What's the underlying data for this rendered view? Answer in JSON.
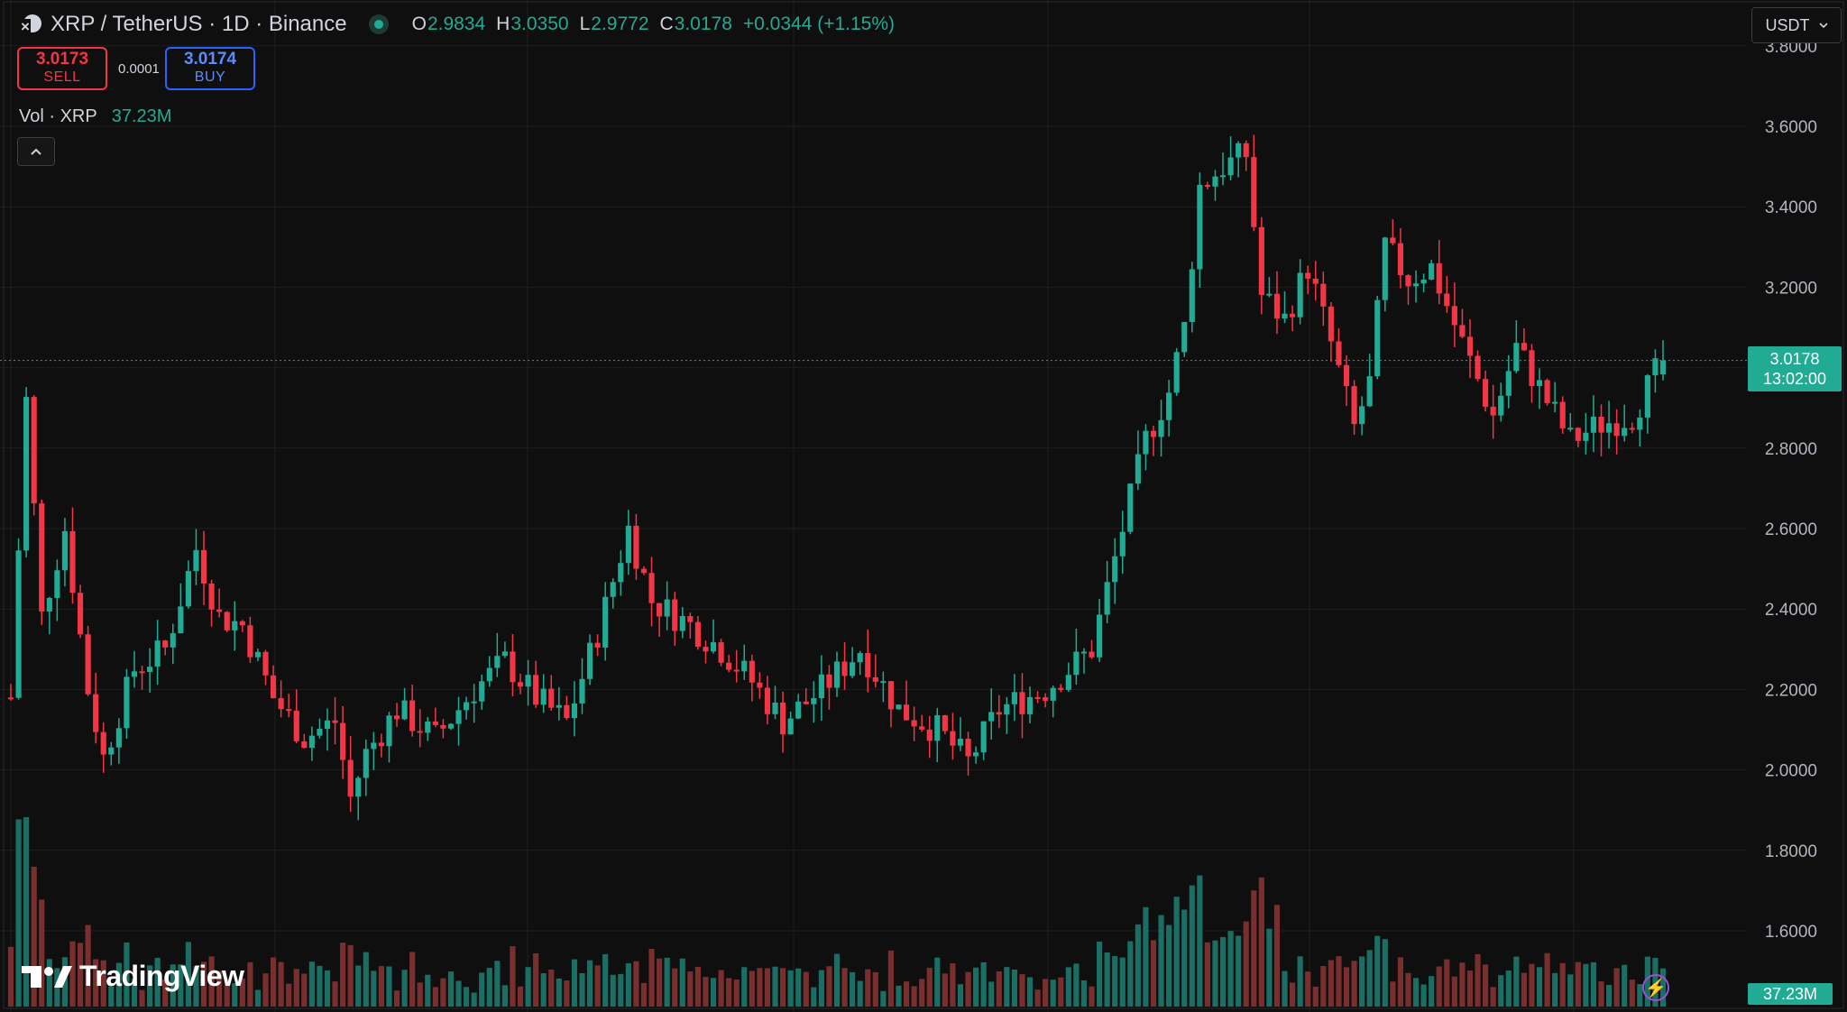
{
  "header": {
    "symbol_title": "XRP / TetherUS · 1D · Binance",
    "ohlc": [
      {
        "key": "O",
        "value": "2.9834"
      },
      {
        "key": "H",
        "value": "3.0350"
      },
      {
        "key": "L",
        "value": "2.9772"
      },
      {
        "key": "C",
        "value": "3.0178"
      }
    ],
    "change": "+0.0344 (+1.15%)",
    "currency": "USDT"
  },
  "trade": {
    "sell_price": "3.0173",
    "sell_label": "SELL",
    "spread": "0.0001",
    "buy_price": "3.0174",
    "buy_label": "BUY"
  },
  "volume_legend": {
    "label": "Vol · XRP",
    "value": "37.23M"
  },
  "price_tag": {
    "price": "3.0178",
    "countdown": "13:02:00"
  },
  "volume_tag": "37.23M",
  "branding": "TradingView",
  "colors": {
    "up": "#22ab94",
    "down": "#f23645",
    "up_volume": "#1a6e63",
    "down_volume": "#7a2f2f",
    "background": "#0f0f0f",
    "grid": "#1f1f1f"
  },
  "chart_data": {
    "type": "candlestick",
    "interval": "1D",
    "y_axis": {
      "ticks": [
        "1.6000",
        "1.8000",
        "2.0000",
        "2.2000",
        "2.4000",
        "2.6000",
        "2.8000",
        "3.0000",
        "3.2000",
        "3.4000",
        "3.6000",
        "3.8000"
      ],
      "range": [
        1.5,
        3.85
      ],
      "position": "right"
    },
    "grid": true,
    "last_price": 3.0178,
    "anchors": [
      {
        "t": 0,
        "p": 2.18
      },
      {
        "t": 2,
        "p": 2.92
      },
      {
        "t": 4,
        "p": 2.38
      },
      {
        "t": 7,
        "p": 2.6
      },
      {
        "t": 10,
        "p": 2.2
      },
      {
        "t": 12,
        "p": 2.03
      },
      {
        "t": 16,
        "p": 2.25
      },
      {
        "t": 20,
        "p": 2.3
      },
      {
        "t": 24,
        "p": 2.55
      },
      {
        "t": 27,
        "p": 2.38
      },
      {
        "t": 30,
        "p": 2.36
      },
      {
        "t": 34,
        "p": 2.18
      },
      {
        "t": 38,
        "p": 2.08
      },
      {
        "t": 42,
        "p": 2.12
      },
      {
        "t": 44,
        "p": 1.93
      },
      {
        "t": 46,
        "p": 2.04
      },
      {
        "t": 50,
        "p": 2.15
      },
      {
        "t": 55,
        "p": 2.08
      },
      {
        "t": 60,
        "p": 2.2
      },
      {
        "t": 64,
        "p": 2.27
      },
      {
        "t": 68,
        "p": 2.18
      },
      {
        "t": 72,
        "p": 2.12
      },
      {
        "t": 76,
        "p": 2.34
      },
      {
        "t": 80,
        "p": 2.6
      },
      {
        "t": 83,
        "p": 2.42
      },
      {
        "t": 88,
        "p": 2.36
      },
      {
        "t": 92,
        "p": 2.3
      },
      {
        "t": 96,
        "p": 2.22
      },
      {
        "t": 100,
        "p": 2.12
      },
      {
        "t": 105,
        "p": 2.2
      },
      {
        "t": 110,
        "p": 2.3
      },
      {
        "t": 115,
        "p": 2.15
      },
      {
        "t": 120,
        "p": 2.1
      },
      {
        "t": 124,
        "p": 2.02
      },
      {
        "t": 128,
        "p": 2.15
      },
      {
        "t": 134,
        "p": 2.2
      },
      {
        "t": 140,
        "p": 2.3
      },
      {
        "t": 144,
        "p": 2.6
      },
      {
        "t": 147,
        "p": 2.82
      },
      {
        "t": 150,
        "p": 2.94
      },
      {
        "t": 152,
        "p": 3.1
      },
      {
        "t": 154,
        "p": 3.45
      },
      {
        "t": 157,
        "p": 3.5
      },
      {
        "t": 160,
        "p": 3.53
      },
      {
        "t": 162,
        "p": 3.18
      },
      {
        "t": 165,
        "p": 3.12
      },
      {
        "t": 168,
        "p": 3.25
      },
      {
        "t": 171,
        "p": 3.06
      },
      {
        "t": 174,
        "p": 2.85
      },
      {
        "t": 176,
        "p": 2.96
      },
      {
        "t": 178,
        "p": 3.3
      },
      {
        "t": 181,
        "p": 3.22
      },
      {
        "t": 184,
        "p": 3.25
      },
      {
        "t": 188,
        "p": 3.06
      },
      {
        "t": 192,
        "p": 2.88
      },
      {
        "t": 195,
        "p": 3.05
      },
      {
        "t": 198,
        "p": 2.95
      },
      {
        "t": 202,
        "p": 2.82
      },
      {
        "t": 206,
        "p": 2.86
      },
      {
        "t": 210,
        "p": 2.88
      },
      {
        "t": 214,
        "p": 3.02
      }
    ]
  }
}
